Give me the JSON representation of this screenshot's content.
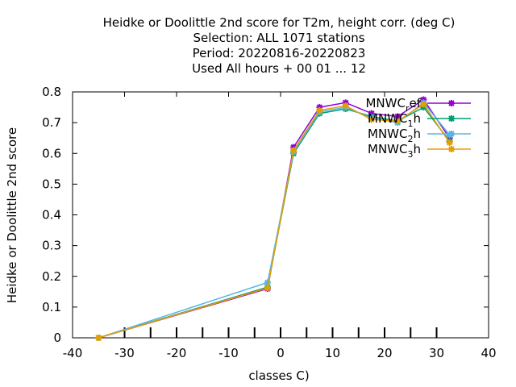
{
  "chart_data": {
    "type": "line",
    "title_lines": [
      "Heidke or Doolittle 2nd score  for T2m, height corr. (deg C)",
      "Selection: ALL   1071 stations",
      "Period: 20220816-20220823",
      "Used  All hours + 00 01 ... 12"
    ],
    "xlabel": "classes C)",
    "ylabel": "Heidke or Doolittle 2nd score",
    "xlim": [
      -40,
      40
    ],
    "ylim": [
      0,
      0.8
    ],
    "xticks": [
      -40,
      -30,
      -20,
      -10,
      0,
      10,
      20,
      30,
      40
    ],
    "xtick_labels": [
      "-40",
      "-30",
      "-20",
      "-10",
      "0",
      "10",
      "20",
      "30",
      "40"
    ],
    "yticks": [
      0,
      0.1,
      0.2,
      0.3,
      0.4,
      0.5,
      0.6,
      0.7,
      0.8
    ],
    "ytick_labels": [
      "0",
      "0.1",
      "0.2",
      "0.3",
      "0.4",
      "0.5",
      "0.6",
      "0.7",
      "0.8"
    ],
    "minor_xticks": [
      -30,
      -25,
      -20,
      -15,
      -10,
      -5,
      0,
      5,
      10,
      15,
      20,
      25,
      30
    ],
    "grid": false,
    "legend_position": "top-right",
    "x": [
      -35,
      -2.5,
      2.5,
      7.5,
      12.5,
      17.5,
      22.5,
      27.5,
      32.5
    ],
    "series": [
      {
        "name": "MNWC_ref",
        "label_base": "MNWC",
        "label_sub": "r",
        "label_rest": "ef",
        "color": "#9400d3",
        "values": [
          0.0,
          0.16,
          0.62,
          0.75,
          0.765,
          0.73,
          0.72,
          0.775,
          0.65
        ]
      },
      {
        "name": "MNWC_1h",
        "label_base": "MNWC",
        "label_sub": "1",
        "label_rest": "h",
        "color": "#009e73",
        "values": [
          0.0,
          0.165,
          0.6,
          0.73,
          0.745,
          0.72,
          0.705,
          0.75,
          0.64
        ]
      },
      {
        "name": "MNWC_2h",
        "label_base": "MNWC",
        "label_sub": "2",
        "label_rest": "h",
        "color": "#56b4e9",
        "values": [
          0.0,
          0.18,
          0.605,
          0.735,
          0.75,
          0.715,
          0.7,
          0.765,
          0.66
        ]
      },
      {
        "name": "MNWC_3h",
        "label_base": "MNWC",
        "label_sub": "3",
        "label_rest": "h",
        "color": "#e69f00",
        "values": [
          0.0,
          0.162,
          0.61,
          0.74,
          0.755,
          0.71,
          0.705,
          0.76,
          0.635
        ]
      }
    ]
  }
}
